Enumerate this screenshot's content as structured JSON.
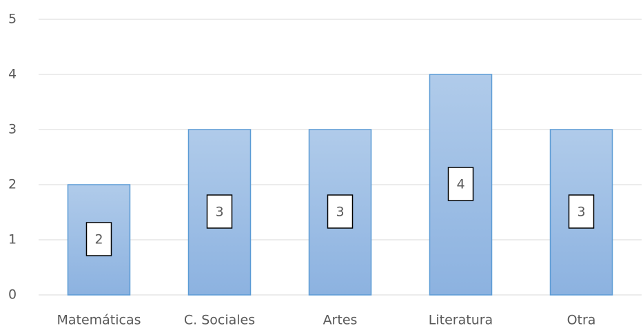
{
  "chart_data": {
    "type": "bar",
    "categories": [
      "Matemáticas",
      "C. Sociales",
      "Artes",
      "Literatura",
      "Otra"
    ],
    "values": [
      2,
      3,
      3,
      4,
      3
    ],
    "color": "#5b9bd5",
    "ylim": [
      0,
      5
    ],
    "yticks": [
      0,
      1,
      2,
      3,
      4,
      5
    ],
    "grid": true
  }
}
